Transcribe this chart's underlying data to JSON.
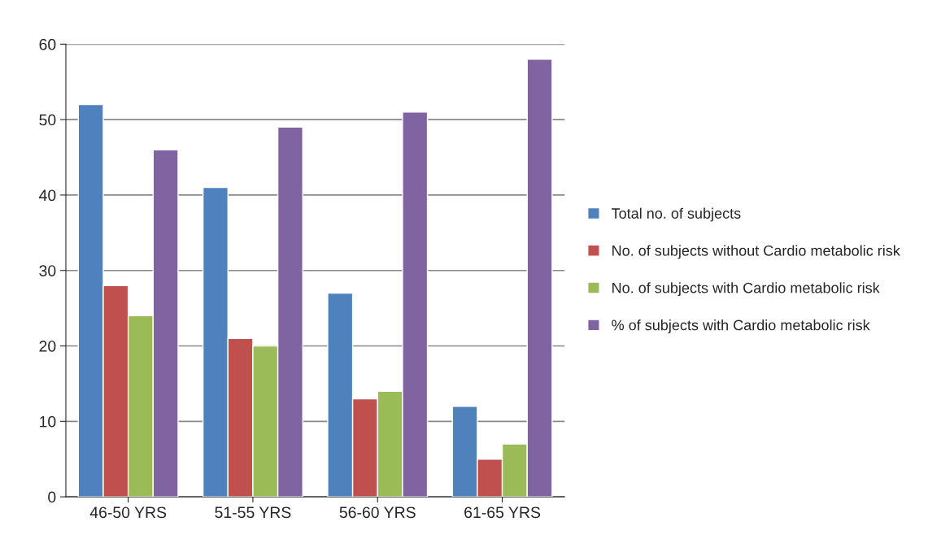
{
  "chart_data": {
    "type": "bar",
    "categories": [
      "46-50 YRS",
      "51-55 YRS",
      "56-60 YRS",
      "61-65 YRS"
    ],
    "series": [
      {
        "name": "Total no. of subjects",
        "color": "#4f81bd",
        "values": [
          52,
          41,
          27,
          12
        ]
      },
      {
        "name": "No. of subjects without Cardio metabolic risk",
        "color": "#c0504d",
        "values": [
          28,
          21,
          13,
          5
        ]
      },
      {
        "name": "No. of subjects with Cardio metabolic risk",
        "color": "#9bbb59",
        "values": [
          24,
          20,
          14,
          7
        ]
      },
      {
        "name": "% of subjects with Cardio metabolic risk",
        "color": "#8064a2",
        "values": [
          46,
          49,
          51,
          58
        ]
      }
    ],
    "ylim": [
      0,
      60
    ],
    "yticks": [
      0,
      10,
      20,
      30,
      40,
      50,
      60
    ],
    "grid": "y",
    "legend": "right"
  }
}
